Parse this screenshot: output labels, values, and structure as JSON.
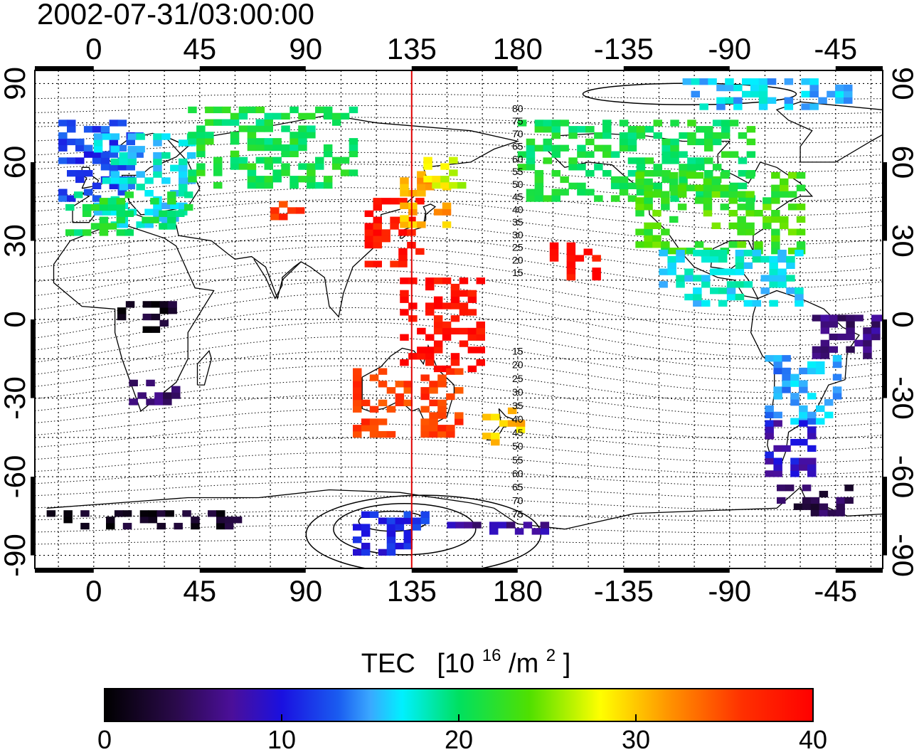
{
  "timestamp": "2002-07-31/03:00:00",
  "colorbar": {
    "title": "TEC",
    "unit_prefix": "[10",
    "unit_exp": "16",
    "unit_mid": "/m",
    "unit_exp2": "2",
    "unit_suffix": "]",
    "min": 0,
    "max": 40,
    "tick_values": [
      0,
      10,
      20,
      30,
      40
    ],
    "tick_labels": [
      "0",
      "10",
      "20",
      "30",
      "40"
    ]
  },
  "axes": {
    "longitude_ticks": [
      "0",
      "45",
      "90",
      "135",
      "180",
      "-135",
      "-90",
      "-45"
    ],
    "latitude_ticks_left": [
      "90",
      "60",
      "30",
      "0",
      "-30",
      "-60",
      "-90"
    ],
    "latitude_ticks_right": [
      "90",
      "60",
      "30",
      "0",
      "-30",
      "-60",
      "-90"
    ]
  },
  "meridian_marker": {
    "longitude": 135,
    "color": "#e00000"
  },
  "contour_labels_north": [
    "80",
    "75",
    "70",
    "65",
    "60",
    "55",
    "50",
    "45",
    "40",
    "35",
    "30",
    "25",
    "20",
    "15"
  ],
  "contour_labels_south": [
    "15",
    "20",
    "25",
    "30",
    "35",
    "40",
    "45",
    "50",
    "55",
    "60",
    "65",
    "70",
    "75"
  ],
  "chart_data": {
    "type": "heatmap",
    "title": "2002-07-31/03:00:00",
    "xlabel": "",
    "ylabel": "",
    "colorbar_label": "TEC [10^16/m^2]",
    "value_range": [
      0,
      40
    ],
    "lon_range": [
      -25,
      335
    ],
    "lat_range": [
      -95,
      95
    ],
    "regions": [
      {
        "lon": [
          -15,
          20
        ],
        "lat": [
          45,
          75
        ],
        "tec": 12
      },
      {
        "lon": [
          0,
          40
        ],
        "lat": [
          35,
          70
        ],
        "tec": 17
      },
      {
        "lon": [
          -12,
          40
        ],
        "lat": [
          32,
          48
        ],
        "tec": 21
      },
      {
        "lon": [
          40,
          110
        ],
        "lat": [
          50,
          80
        ],
        "tec": 21
      },
      {
        "lon": [
          75,
          90
        ],
        "lat": [
          38,
          45
        ],
        "tec": 36
      },
      {
        "lon": [
          115,
          140
        ],
        "lat": [
          20,
          45
        ],
        "tec": 38
      },
      {
        "lon": [
          130,
          150
        ],
        "lat": [
          35,
          55
        ],
        "tec": 31
      },
      {
        "lon": [
          140,
          155
        ],
        "lat": [
          50,
          60
        ],
        "tec": 27
      },
      {
        "lon": [
          130,
          165
        ],
        "lat": [
          -20,
          15
        ],
        "tec": 39
      },
      {
        "lon": [
          110,
          155
        ],
        "lat": [
          -45,
          -20
        ],
        "tec": 36
      },
      {
        "lon": [
          165,
          180
        ],
        "lat": [
          -48,
          -35
        ],
        "tec": 30
      },
      {
        "lon": [
          190,
          215
        ],
        "lat": [
          15,
          28
        ],
        "tec": 39
      },
      {
        "lon": [
          180,
          280
        ],
        "lat": [
          45,
          75
        ],
        "tec": 21
      },
      {
        "lon": [
          230,
          300
        ],
        "lat": [
          25,
          55
        ],
        "tec": 23
      },
      {
        "lon": [
          240,
          300
        ],
        "lat": [
          5,
          25
        ],
        "tec": 17
      },
      {
        "lon": [
          250,
          320
        ],
        "lat": [
          80,
          90
        ],
        "tec": 16
      },
      {
        "lon": [
          305,
          335
        ],
        "lat": [
          -15,
          0
        ],
        "tec": 6
      },
      {
        "lon": [
          285,
          315
        ],
        "lat": [
          -40,
          -15
        ],
        "tec": 15
      },
      {
        "lon": [
          285,
          305
        ],
        "lat": [
          -60,
          -40
        ],
        "tec": 9
      },
      {
        "lon": [
          290,
          320
        ],
        "lat": [
          -75,
          -65
        ],
        "tec": 4
      },
      {
        "lon": [
          10,
          35
        ],
        "lat": [
          -5,
          5
        ],
        "tec": 2
      },
      {
        "lon": [
          15,
          35
        ],
        "lat": [
          -35,
          -25
        ],
        "tec": 5
      },
      {
        "lon": [
          -20,
          60
        ],
        "lat": [
          -80,
          -75
        ],
        "tec": 2
      },
      {
        "lon": [
          110,
          140
        ],
        "lat": [
          -90,
          -75
        ],
        "tec": 11
      },
      {
        "lon": [
          150,
          190
        ],
        "lat": [
          -82,
          -78
        ],
        "tec": 7
      }
    ]
  }
}
